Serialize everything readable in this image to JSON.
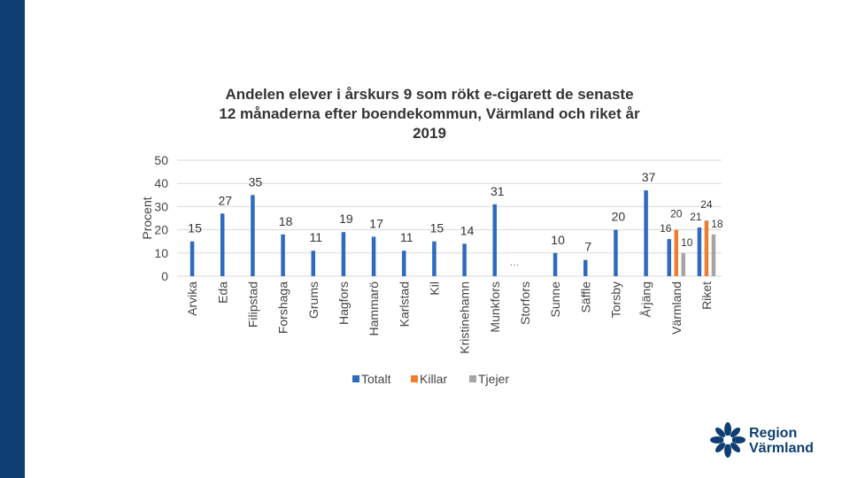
{
  "title_lines": [
    "Andelen elever i årskurs 9 som rökt e-cigarett de senaste",
    "12 månaderna efter boendekommun, Värmland och riket år",
    "2019"
  ],
  "logo": {
    "line1": "Region",
    "line2": "Värmland",
    "icon": "flower-logo-icon"
  },
  "colors": {
    "band": "#0f3f72",
    "totalt": "#2e6bbf",
    "killar": "#ed7d31",
    "tjejer": "#a5a5a5"
  },
  "chart_data": {
    "type": "bar",
    "title": "Andelen elever i årskurs 9 som rökt e-cigarett de senaste 12 månaderna efter boendekommun, Värmland och riket år 2019",
    "xlabel": "",
    "ylabel": "Procent",
    "ylim": [
      0,
      50
    ],
    "yticks": [
      "0",
      "10",
      "20",
      "30",
      "40",
      "50"
    ],
    "grid": true,
    "legend_position": "bottom",
    "categories": [
      "Arvika",
      "Eda",
      "Filipstad",
      "Forshaga",
      "Grums",
      "Hagfors",
      "Hammarö",
      "Karlstad",
      "Kil",
      "Kristinehamn",
      "Munkfors",
      "Storfors",
      "Sunne",
      "Säffle",
      "Torsby",
      "Årjäng",
      "Värmland",
      "Riket"
    ],
    "series": [
      {
        "name": "Totalt",
        "values": [
          15,
          27,
          35,
          18,
          11,
          19,
          17,
          11,
          15,
          14,
          31,
          null,
          10,
          7,
          20,
          37,
          16,
          21
        ]
      },
      {
        "name": "Killar",
        "values": [
          null,
          null,
          null,
          null,
          null,
          null,
          null,
          null,
          null,
          null,
          null,
          null,
          null,
          null,
          null,
          null,
          20,
          24
        ]
      },
      {
        "name": "Tjejer",
        "values": [
          null,
          null,
          null,
          null,
          null,
          null,
          null,
          null,
          null,
          null,
          null,
          null,
          null,
          null,
          null,
          null,
          10,
          18
        ]
      }
    ],
    "annotations": [
      "…"
    ]
  }
}
